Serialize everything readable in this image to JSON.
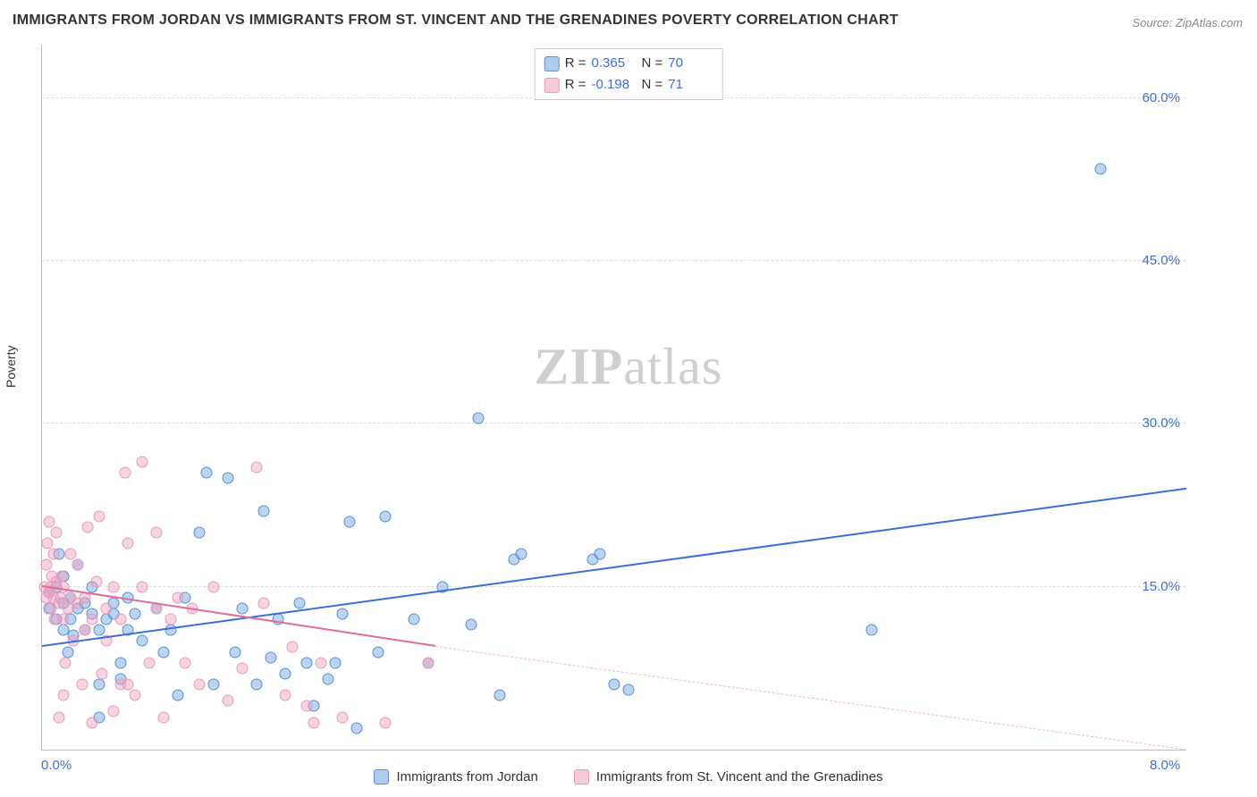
{
  "title": "IMMIGRANTS FROM JORDAN VS IMMIGRANTS FROM ST. VINCENT AND THE GRENADINES POVERTY CORRELATION CHART",
  "source": "Source: ZipAtlas.com",
  "ylabel": "Poverty",
  "watermark_zip": "ZIP",
  "watermark_atlas": "atlas",
  "chart": {
    "type": "scatter",
    "background_color": "#ffffff",
    "grid_color": "#dddddd",
    "axis_color": "#bbbbbb",
    "xlim": [
      0.0,
      8.0
    ],
    "ylim": [
      0.0,
      65.0
    ],
    "yticks": [
      {
        "v": 15.0,
        "label": "15.0%"
      },
      {
        "v": 30.0,
        "label": "30.0%"
      },
      {
        "v": 45.0,
        "label": "45.0%"
      },
      {
        "v": 60.0,
        "label": "60.0%"
      }
    ],
    "xticks": [
      {
        "v": 0.0,
        "label": "0.0%"
      },
      {
        "v": 8.0,
        "label": "8.0%"
      }
    ],
    "tick_fontsize": 15,
    "tick_color": "#3b6fd6",
    "series": [
      {
        "name": "Immigrants from Jordan",
        "color_fill": "rgba(120,170,230,0.5)",
        "color_stroke": "#5b8fd6",
        "marker_radius": 6.5,
        "correlation_R": "0.365",
        "correlation_N": "70",
        "trend": {
          "x0": 0.0,
          "y0": 9.5,
          "x1": 8.0,
          "y1": 24.0,
          "color": "#3b6fd6",
          "width": 2
        },
        "points": [
          [
            0.05,
            14.5
          ],
          [
            0.05,
            13
          ],
          [
            0.1,
            12
          ],
          [
            0.1,
            15
          ],
          [
            0.12,
            18
          ],
          [
            0.15,
            11
          ],
          [
            0.15,
            13.5
          ],
          [
            0.15,
            16
          ],
          [
            0.18,
            9
          ],
          [
            0.2,
            12
          ],
          [
            0.2,
            14
          ],
          [
            0.22,
            10.5
          ],
          [
            0.25,
            13
          ],
          [
            0.25,
            17
          ],
          [
            0.3,
            11
          ],
          [
            0.3,
            13.5
          ],
          [
            0.35,
            12.5
          ],
          [
            0.35,
            15
          ],
          [
            0.4,
            3
          ],
          [
            0.4,
            6
          ],
          [
            0.4,
            11
          ],
          [
            0.45,
            12
          ],
          [
            0.5,
            12.5
          ],
          [
            0.5,
            13.5
          ],
          [
            0.55,
            6.5
          ],
          [
            0.55,
            8
          ],
          [
            0.6,
            11
          ],
          [
            0.6,
            14
          ],
          [
            0.65,
            12.5
          ],
          [
            0.7,
            10
          ],
          [
            0.8,
            13
          ],
          [
            0.85,
            9
          ],
          [
            0.9,
            11
          ],
          [
            0.95,
            5
          ],
          [
            1.0,
            14
          ],
          [
            1.1,
            20
          ],
          [
            1.15,
            25.5
          ],
          [
            1.2,
            6
          ],
          [
            1.3,
            25
          ],
          [
            1.35,
            9
          ],
          [
            1.4,
            13
          ],
          [
            1.5,
            6
          ],
          [
            1.55,
            22
          ],
          [
            1.6,
            8.5
          ],
          [
            1.65,
            12
          ],
          [
            1.7,
            7
          ],
          [
            1.8,
            13.5
          ],
          [
            1.85,
            8
          ],
          [
            1.9,
            4
          ],
          [
            2.0,
            6.5
          ],
          [
            2.05,
            8
          ],
          [
            2.1,
            12.5
          ],
          [
            2.15,
            21
          ],
          [
            2.2,
            2
          ],
          [
            2.35,
            9
          ],
          [
            2.4,
            21.5
          ],
          [
            2.6,
            12
          ],
          [
            2.7,
            8
          ],
          [
            2.8,
            15
          ],
          [
            3.0,
            11.5
          ],
          [
            3.05,
            30.5
          ],
          [
            3.2,
            5
          ],
          [
            3.3,
            17.5
          ],
          [
            3.35,
            18
          ],
          [
            3.85,
            17.5
          ],
          [
            3.9,
            18
          ],
          [
            4.0,
            6
          ],
          [
            4.1,
            5.5
          ],
          [
            5.8,
            11
          ],
          [
            7.4,
            53.5
          ]
        ]
      },
      {
        "name": "Immigrants from St. Vincent and the Grenadines",
        "color_fill": "rgba(240,160,190,0.45)",
        "color_stroke": "#e79ab8",
        "marker_radius": 6.5,
        "correlation_R": "-0.198",
        "correlation_N": "71",
        "trend_solid": {
          "x0": 0.0,
          "y0": 15.0,
          "x1": 2.75,
          "y1": 9.5,
          "color": "#e36a9a",
          "width": 2
        },
        "trend_dashed": {
          "x0": 2.75,
          "y0": 9.5,
          "x1": 8.0,
          "y1": 0.0,
          "color": "#f0b6cc",
          "width": 1.5
        },
        "points": [
          [
            0.02,
            15
          ],
          [
            0.03,
            14
          ],
          [
            0.03,
            17
          ],
          [
            0.04,
            19
          ],
          [
            0.05,
            14.5
          ],
          [
            0.05,
            21
          ],
          [
            0.06,
            13
          ],
          [
            0.06,
            15
          ],
          [
            0.07,
            16
          ],
          [
            0.08,
            14
          ],
          [
            0.08,
            18
          ],
          [
            0.09,
            12
          ],
          [
            0.1,
            15.5
          ],
          [
            0.1,
            20
          ],
          [
            0.12,
            3
          ],
          [
            0.12,
            13.5
          ],
          [
            0.13,
            14
          ],
          [
            0.14,
            16
          ],
          [
            0.15,
            5
          ],
          [
            0.15,
            12
          ],
          [
            0.15,
            15
          ],
          [
            0.16,
            8
          ],
          [
            0.18,
            13
          ],
          [
            0.2,
            14
          ],
          [
            0.2,
            18
          ],
          [
            0.22,
            10
          ],
          [
            0.25,
            13.5
          ],
          [
            0.25,
            17
          ],
          [
            0.28,
            6
          ],
          [
            0.3,
            11
          ],
          [
            0.3,
            14
          ],
          [
            0.32,
            20.5
          ],
          [
            0.35,
            2.5
          ],
          [
            0.35,
            12
          ],
          [
            0.38,
            15.5
          ],
          [
            0.4,
            21.5
          ],
          [
            0.42,
            7
          ],
          [
            0.45,
            10
          ],
          [
            0.45,
            13
          ],
          [
            0.5,
            3.5
          ],
          [
            0.5,
            15
          ],
          [
            0.55,
            6
          ],
          [
            0.55,
            12
          ],
          [
            0.58,
            25.5
          ],
          [
            0.6,
            6
          ],
          [
            0.6,
            19
          ],
          [
            0.65,
            5
          ],
          [
            0.7,
            15
          ],
          [
            0.7,
            26.5
          ],
          [
            0.75,
            8
          ],
          [
            0.8,
            13
          ],
          [
            0.8,
            20
          ],
          [
            0.85,
            3
          ],
          [
            0.9,
            12
          ],
          [
            0.95,
            14
          ],
          [
            1.0,
            8
          ],
          [
            1.05,
            13
          ],
          [
            1.1,
            6
          ],
          [
            1.2,
            15
          ],
          [
            1.3,
            4.5
          ],
          [
            1.4,
            7.5
          ],
          [
            1.5,
            26
          ],
          [
            1.55,
            13.5
          ],
          [
            1.7,
            5
          ],
          [
            1.75,
            9.5
          ],
          [
            1.85,
            4
          ],
          [
            1.9,
            2.5
          ],
          [
            1.95,
            8
          ],
          [
            2.1,
            3
          ],
          [
            2.4,
            2.5
          ],
          [
            2.7,
            8
          ]
        ]
      }
    ]
  },
  "stat_legend": {
    "rows": [
      {
        "swatch": "blue",
        "R_label": "R =",
        "R_val": "0.365",
        "N_label": "N =",
        "N_val": "70"
      },
      {
        "swatch": "pink",
        "R_label": "R =",
        "R_val": "-0.198",
        "N_label": "N =",
        "N_val": "71"
      }
    ]
  },
  "bottom_legend": {
    "items": [
      {
        "swatch": "blue",
        "label": "Immigrants from Jordan"
      },
      {
        "swatch": "pink",
        "label": "Immigrants from St. Vincent and the Grenadines"
      }
    ]
  }
}
